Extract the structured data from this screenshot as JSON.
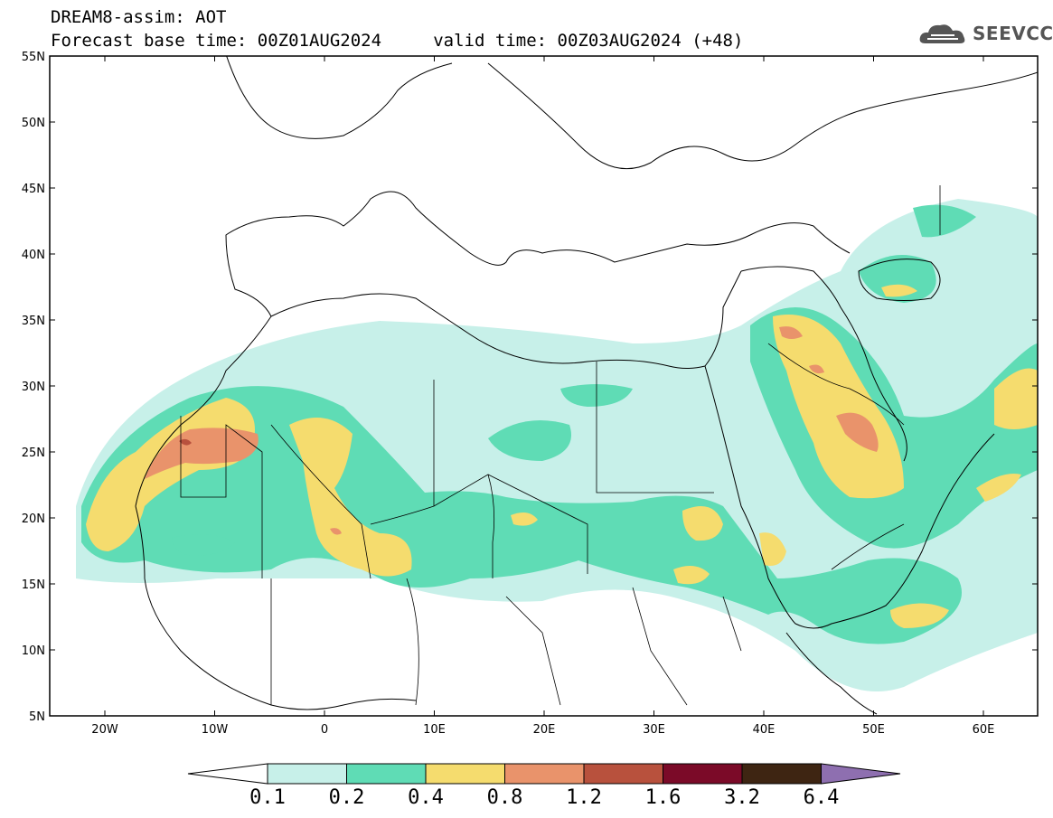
{
  "header": {
    "title": "DREAM8-assim: AOT",
    "subtitle": "Forecast base time: 00Z01AUG2024     valid time: 00Z03AUG2024 (+48)",
    "logo_text": "SEEVCCC"
  },
  "map": {
    "lat_labels": [
      "55N",
      "50N",
      "45N",
      "40N",
      "35N",
      "30N",
      "25N",
      "20N",
      "15N",
      "10N",
      "5N"
    ],
    "lon_labels": [
      "20W",
      "10W",
      "0",
      "10E",
      "20E",
      "30E",
      "40E",
      "50E",
      "60E"
    ]
  },
  "colorbar": {
    "labels": [
      "0.1",
      "0.2",
      "0.4",
      "0.8",
      "1.2",
      "1.6",
      "3.2",
      "6.4"
    ],
    "colors": [
      "#c7f0e9",
      "#5fdcb5",
      "#f5dc6e",
      "#e9936b",
      "#b8513d",
      "#7b0a28",
      "#3e2512",
      "#8e6fb0"
    ]
  },
  "colors": {
    "level1": "#c7f0e9",
    "level2": "#5fdcb5",
    "level3": "#f5dc6e",
    "level4": "#e9936b",
    "level5": "#b8513d"
  }
}
